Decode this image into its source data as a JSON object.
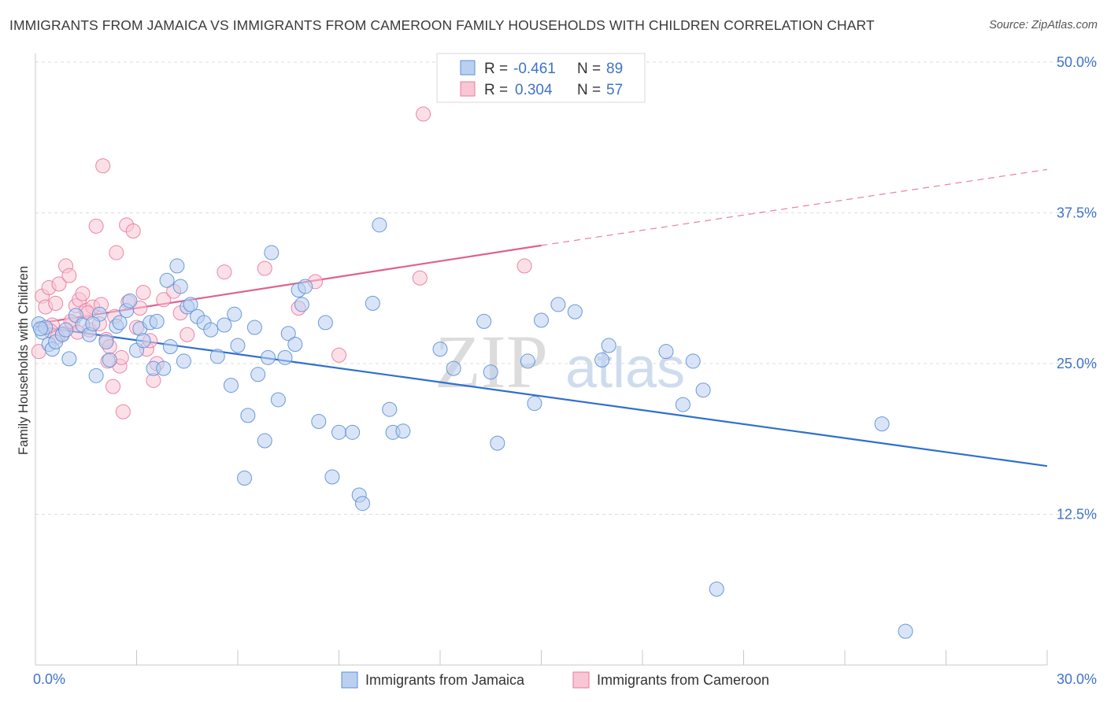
{
  "title": "IMMIGRANTS FROM JAMAICA VS IMMIGRANTS FROM CAMEROON FAMILY HOUSEHOLDS WITH CHILDREN CORRELATION CHART",
  "source": "Source: ZipAtlas.com",
  "watermark": {
    "zip": "ZIP",
    "atlas": "atlas"
  },
  "colors": {
    "blue": "#5b8fd6",
    "blue_fill": "#b9d0f1",
    "blue_line": "#2f6fd0",
    "pink": "#e8799e",
    "pink_fill": "#f9c6d6",
    "pink_line": "#e0608f",
    "tick_text": "#3f73c9",
    "grid": "#dddddd"
  },
  "legend": {
    "rows": [
      {
        "r_label": "R =",
        "r_value": "-0.461",
        "n_label": "N =",
        "n_value": "89",
        "color": "blue"
      },
      {
        "r_label": "R =",
        "r_value": "0.304",
        "n_label": "N =",
        "n_value": "57",
        "color": "pink"
      }
    ]
  },
  "chart_data": {
    "type": "scatter",
    "title": "IMMIGRANTS FROM JAMAICA VS IMMIGRANTS FROM CAMEROON FAMILY HOUSEHOLDS WITH CHILDREN CORRELATION CHART",
    "xlabel": "",
    "ylabel": "Family Households with Children",
    "xlim": [
      0,
      30
    ],
    "ylim": [
      0,
      50
    ],
    "x_tick_labels": {
      "min": "0.0%",
      "max": "30.0%"
    },
    "y_ticks": [
      {
        "value": 12.5,
        "label": "12.5%"
      },
      {
        "value": 25.0,
        "label": "25.0%"
      },
      {
        "value": 37.5,
        "label": "37.5%"
      },
      {
        "value": 50.0,
        "label": "50.0%"
      }
    ],
    "grid": "horizontal dashed",
    "legend_position": "top-center",
    "series": [
      {
        "name": "Immigrants from Jamaica",
        "color": "blue",
        "trend": {
          "x": [
            0,
            30
          ],
          "y": [
            28.1,
            16.5
          ]
        },
        "points": [
          [
            0.1,
            28.3
          ],
          [
            0.2,
            27.6
          ],
          [
            0.3,
            28.0
          ],
          [
            0.4,
            26.6
          ],
          [
            0.5,
            26.2
          ],
          [
            0.6,
            26.8
          ],
          [
            0.8,
            27.4
          ],
          [
            0.9,
            27.8
          ],
          [
            1.0,
            25.4
          ],
          [
            1.2,
            29.0
          ],
          [
            1.4,
            28.2
          ],
          [
            1.6,
            27.4
          ],
          [
            1.8,
            24.0
          ],
          [
            1.9,
            29.1
          ],
          [
            2.1,
            26.8
          ],
          [
            2.2,
            25.3
          ],
          [
            2.4,
            28.1
          ],
          [
            2.5,
            28.4
          ],
          [
            2.7,
            29.4
          ],
          [
            2.8,
            30.2
          ],
          [
            3.0,
            26.1
          ],
          [
            3.1,
            27.9
          ],
          [
            3.2,
            26.9
          ],
          [
            3.4,
            28.4
          ],
          [
            3.5,
            24.6
          ],
          [
            3.6,
            28.5
          ],
          [
            3.8,
            24.6
          ],
          [
            3.9,
            31.9
          ],
          [
            4.0,
            26.4
          ],
          [
            4.2,
            33.1
          ],
          [
            4.3,
            31.4
          ],
          [
            4.4,
            25.2
          ],
          [
            4.5,
            29.7
          ],
          [
            4.6,
            29.9
          ],
          [
            4.8,
            28.9
          ],
          [
            5.0,
            28.4
          ],
          [
            5.2,
            27.8
          ],
          [
            5.4,
            25.6
          ],
          [
            5.6,
            28.2
          ],
          [
            5.8,
            23.2
          ],
          [
            5.9,
            29.1
          ],
          [
            6.0,
            26.5
          ],
          [
            6.2,
            15.5
          ],
          [
            6.3,
            20.7
          ],
          [
            6.5,
            28.0
          ],
          [
            6.6,
            24.1
          ],
          [
            6.8,
            18.6
          ],
          [
            6.9,
            25.5
          ],
          [
            7.0,
            34.2
          ],
          [
            7.2,
            22.0
          ],
          [
            7.4,
            25.5
          ],
          [
            7.5,
            27.5
          ],
          [
            7.7,
            26.6
          ],
          [
            7.8,
            31.1
          ],
          [
            7.9,
            29.9
          ],
          [
            8.0,
            31.4
          ],
          [
            8.4,
            20.2
          ],
          [
            8.6,
            28.4
          ],
          [
            8.8,
            15.6
          ],
          [
            9.0,
            19.3
          ],
          [
            9.4,
            19.3
          ],
          [
            9.6,
            14.1
          ],
          [
            9.7,
            13.4
          ],
          [
            10.0,
            30.0
          ],
          [
            10.2,
            36.5
          ],
          [
            10.5,
            21.2
          ],
          [
            10.6,
            19.3
          ],
          [
            10.9,
            19.4
          ],
          [
            12.0,
            26.2
          ],
          [
            12.4,
            24.6
          ],
          [
            13.3,
            28.5
          ],
          [
            13.5,
            24.3
          ],
          [
            13.7,
            18.4
          ],
          [
            14.6,
            25.2
          ],
          [
            14.8,
            21.7
          ],
          [
            15.0,
            28.6
          ],
          [
            15.5,
            29.9
          ],
          [
            16.0,
            29.3
          ],
          [
            16.8,
            25.3
          ],
          [
            17.0,
            26.5
          ],
          [
            18.7,
            26.0
          ],
          [
            19.2,
            21.6
          ],
          [
            19.5,
            25.2
          ],
          [
            19.8,
            22.8
          ],
          [
            20.2,
            6.3
          ],
          [
            25.1,
            20.0
          ],
          [
            25.8,
            2.8
          ],
          [
            0.15,
            27.9
          ],
          [
            1.7,
            28.3
          ]
        ]
      },
      {
        "name": "Immigrants from Cameroon",
        "color": "pink",
        "trend": {
          "x": [
            0,
            15
          ],
          "y": [
            28.3,
            34.8
          ],
          "dashed_extension": {
            "x": [
              15,
              30
            ],
            "y": [
              34.8,
              41.1
            ]
          }
        },
        "points": [
          [
            0.1,
            26.0
          ],
          [
            0.2,
            30.6
          ],
          [
            0.3,
            29.7
          ],
          [
            0.4,
            31.3
          ],
          [
            0.5,
            28.2
          ],
          [
            0.6,
            30.0
          ],
          [
            0.7,
            31.6
          ],
          [
            0.8,
            27.5
          ],
          [
            0.9,
            33.1
          ],
          [
            1.0,
            32.3
          ],
          [
            1.1,
            28.4
          ],
          [
            1.2,
            29.8
          ],
          [
            1.3,
            30.3
          ],
          [
            1.4,
            30.8
          ],
          [
            1.5,
            29.4
          ],
          [
            1.6,
            27.8
          ],
          [
            1.7,
            29.7
          ],
          [
            1.8,
            36.4
          ],
          [
            1.9,
            28.3
          ],
          [
            2.0,
            41.4
          ],
          [
            2.1,
            27.0
          ],
          [
            2.2,
            26.4
          ],
          [
            2.3,
            23.1
          ],
          [
            2.4,
            34.2
          ],
          [
            2.5,
            24.8
          ],
          [
            2.6,
            21.0
          ],
          [
            2.7,
            36.5
          ],
          [
            2.9,
            36.0
          ],
          [
            3.0,
            28.0
          ],
          [
            3.1,
            29.6
          ],
          [
            3.2,
            30.9
          ],
          [
            3.3,
            26.2
          ],
          [
            3.4,
            26.9
          ],
          [
            3.5,
            23.6
          ],
          [
            3.6,
            25.0
          ],
          [
            3.8,
            30.3
          ],
          [
            4.1,
            31.0
          ],
          [
            4.3,
            29.2
          ],
          [
            4.5,
            27.4
          ],
          [
            5.6,
            32.6
          ],
          [
            6.8,
            32.9
          ],
          [
            7.8,
            29.6
          ],
          [
            8.3,
            31.8
          ],
          [
            9.0,
            25.7
          ],
          [
            11.5,
            45.7
          ],
          [
            11.4,
            32.1
          ],
          [
            14.5,
            33.1
          ],
          [
            0.45,
            27.7
          ],
          [
            0.65,
            27.2
          ],
          [
            1.05,
            28.5
          ],
          [
            1.25,
            27.6
          ],
          [
            1.55,
            29.2
          ],
          [
            1.95,
            29.9
          ],
          [
            2.15,
            25.2
          ],
          [
            2.35,
            28.9
          ],
          [
            2.55,
            25.5
          ],
          [
            2.75,
            30.1
          ]
        ]
      }
    ]
  }
}
